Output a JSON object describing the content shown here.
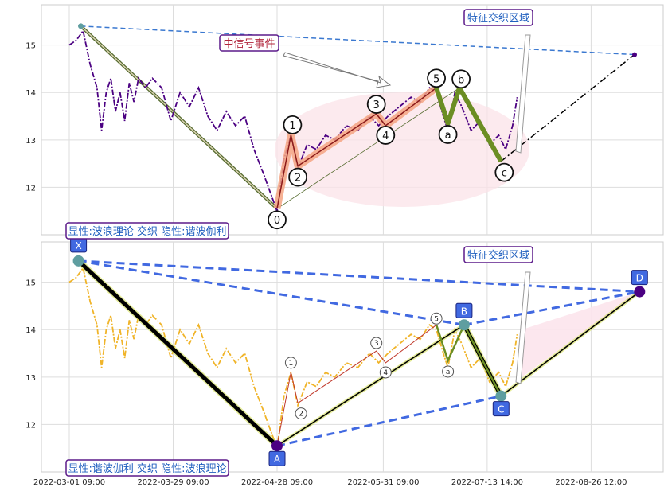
{
  "chart_data": [
    {
      "type": "line",
      "panel": "top",
      "ylim": [
        11.0,
        15.85
      ],
      "yticks": [
        12,
        13,
        14,
        15
      ],
      "grid": true,
      "series": [
        {
          "color": "#4b0082",
          "style": "dash-dot",
          "points": [
            [
              0,
              15.0
            ],
            [
              3,
              15.1
            ],
            [
              6,
              15.3
            ],
            [
              9,
              14.6
            ],
            [
              12,
              14.1
            ],
            [
              14,
              13.2
            ],
            [
              16,
              14.0
            ],
            [
              18,
              14.3
            ],
            [
              20,
              13.6
            ],
            [
              22,
              14.0
            ],
            [
              24,
              13.4
            ],
            [
              26,
              14.2
            ],
            [
              28,
              13.8
            ],
            [
              30,
              14.3
            ],
            [
              33,
              14.1
            ],
            [
              36,
              14.3
            ],
            [
              40,
              14.1
            ],
            [
              44,
              13.4
            ],
            [
              48,
              14.0
            ],
            [
              52,
              13.7
            ],
            [
              56,
              14.1
            ],
            [
              60,
              13.5
            ],
            [
              64,
              13.2
            ],
            [
              68,
              13.6
            ],
            [
              72,
              13.3
            ],
            [
              76,
              13.5
            ],
            [
              80,
              12.8
            ],
            [
              84,
              12.3
            ],
            [
              87,
              11.9
            ],
            [
              90,
              11.5
            ],
            [
              93,
              12.6
            ],
            [
              96,
              13.1
            ],
            [
              99,
              12.4
            ],
            [
              103,
              12.9
            ],
            [
              107,
              12.8
            ],
            [
              111,
              13.1
            ],
            [
              115,
              13.0
            ],
            [
              120,
              13.3
            ],
            [
              125,
              13.2
            ],
            [
              130,
              13.5
            ],
            [
              134,
              13.3
            ],
            [
              138,
              13.5
            ],
            [
              143,
              13.7
            ],
            [
              148,
              13.9
            ],
            [
              152,
              13.8
            ],
            [
              156,
              14.1
            ],
            [
              159,
              14.0
            ],
            [
              162,
              13.5
            ],
            [
              164,
              13.2
            ],
            [
              167,
              14.0
            ],
            [
              170,
              13.7
            ],
            [
              174,
              13.2
            ],
            [
              178,
              13.4
            ],
            [
              182,
              12.9
            ],
            [
              186,
              13.1
            ],
            [
              189,
              12.8
            ],
            [
              192,
              13.3
            ],
            [
              194,
              13.9
            ]
          ]
        }
      ],
      "wave_points": [
        {
          "label": "0",
          "x": 90,
          "y": 11.55
        },
        {
          "label": "1",
          "x": 96,
          "y": 13.1
        },
        {
          "label": "2",
          "x": 99,
          "y": 12.45
        },
        {
          "label": "3",
          "x": 133,
          "y": 13.55
        },
        {
          "label": "4",
          "x": 137,
          "y": 13.3
        },
        {
          "label": "5",
          "x": 159,
          "y": 14.1
        },
        {
          "label": "a",
          "x": 164,
          "y": 13.35
        },
        {
          "label": "b",
          "x": 169,
          "y": 14.1
        },
        {
          "label": "c",
          "x": 187,
          "y": 12.55
        }
      ],
      "annotations": [
        "中信号事件",
        "特征交织区域",
        "显性:波浪理论 交织 隐性:谐波伽利"
      ]
    },
    {
      "type": "line",
      "panel": "bottom",
      "ylim": [
        11.0,
        15.85
      ],
      "yticks": [
        12,
        13,
        14,
        15
      ],
      "grid": true,
      "series": [
        {
          "color": "#f0b429",
          "style": "dash-dot",
          "points": [
            [
              0,
              15.0
            ],
            [
              3,
              15.1
            ],
            [
              6,
              15.3
            ],
            [
              9,
              14.6
            ],
            [
              12,
              14.1
            ],
            [
              14,
              13.2
            ],
            [
              16,
              14.0
            ],
            [
              18,
              14.3
            ],
            [
              20,
              13.6
            ],
            [
              22,
              14.0
            ],
            [
              24,
              13.4
            ],
            [
              26,
              14.2
            ],
            [
              28,
              13.8
            ],
            [
              30,
              14.3
            ],
            [
              33,
              14.1
            ],
            [
              36,
              14.3
            ],
            [
              40,
              14.1
            ],
            [
              44,
              13.4
            ],
            [
              48,
              14.0
            ],
            [
              52,
              13.7
            ],
            [
              56,
              14.1
            ],
            [
              60,
              13.5
            ],
            [
              64,
              13.2
            ],
            [
              68,
              13.6
            ],
            [
              72,
              13.3
            ],
            [
              76,
              13.5
            ],
            [
              80,
              12.8
            ],
            [
              84,
              12.3
            ],
            [
              87,
              11.9
            ],
            [
              90,
              11.5
            ],
            [
              93,
              12.6
            ],
            [
              96,
              13.1
            ],
            [
              99,
              12.4
            ],
            [
              103,
              12.9
            ],
            [
              107,
              12.8
            ],
            [
              111,
              13.1
            ],
            [
              115,
              13.0
            ],
            [
              120,
              13.3
            ],
            [
              125,
              13.2
            ],
            [
              130,
              13.5
            ],
            [
              134,
              13.3
            ],
            [
              138,
              13.5
            ],
            [
              143,
              13.7
            ],
            [
              148,
              13.9
            ],
            [
              152,
              13.8
            ],
            [
              156,
              14.1
            ],
            [
              159,
              14.0
            ],
            [
              162,
              13.5
            ],
            [
              164,
              13.2
            ],
            [
              167,
              14.0
            ],
            [
              170,
              13.7
            ],
            [
              174,
              13.2
            ],
            [
              178,
              13.4
            ],
            [
              182,
              12.9
            ],
            [
              186,
              13.1
            ],
            [
              189,
              12.8
            ],
            [
              192,
              13.3
            ],
            [
              194,
              13.9
            ]
          ]
        }
      ],
      "harmonic_points": [
        {
          "label": "X",
          "x": 4,
          "y": 15.45
        },
        {
          "label": "A",
          "x": 90,
          "y": 11.55
        },
        {
          "label": "B",
          "x": 171,
          "y": 14.1
        },
        {
          "label": "C",
          "x": 187,
          "y": 12.6
        },
        {
          "label": "D",
          "x": 247,
          "y": 14.8
        }
      ],
      "wave_points": [
        {
          "label": "1",
          "x": 96,
          "y": 13.1
        },
        {
          "label": "2",
          "x": 99,
          "y": 12.45
        },
        {
          "label": "3",
          "x": 133,
          "y": 13.55
        },
        {
          "label": "4",
          "x": 137,
          "y": 13.3
        },
        {
          "label": "5",
          "x": 159,
          "y": 14.1
        },
        {
          "label": "a",
          "x": 164,
          "y": 13.35
        }
      ],
      "annotations": [
        "特征交织区域",
        "显性:谐波伽利 交织 隐性:波浪理论"
      ]
    }
  ],
  "x_ticks": [
    {
      "label": "2022-03-01 09:00",
      "x": 0
    },
    {
      "label": "2022-03-29 09:00",
      "x": 45
    },
    {
      "label": "2022-04-28 09:00",
      "x": 90
    },
    {
      "label": "2022-05-31 09:00",
      "x": 136
    },
    {
      "label": "2022-07-13 14:00",
      "x": 181
    },
    {
      "label": "2022-08-26 12:00",
      "x": 226
    }
  ],
  "labels": {
    "top_signal": "中信号事件",
    "top_zone": "特征交织区域",
    "top_mode": "显性:波浪理论 交织 隐性:谐波伽利",
    "bottom_zone": "特征交织区域",
    "bottom_mode": "显性:谐波伽利 交织 隐性:波浪理论"
  },
  "colors": {
    "price_top": "#4b0082",
    "price_bottom": "#f0b429",
    "box_border": "#5b1a8a",
    "box_text_blue": "#1f5fbf",
    "box_text_red": "#b0243a",
    "harmonic_fill": "#4169e1",
    "wave_green": "#6b8e23",
    "wave_orange": "#f4a582"
  }
}
